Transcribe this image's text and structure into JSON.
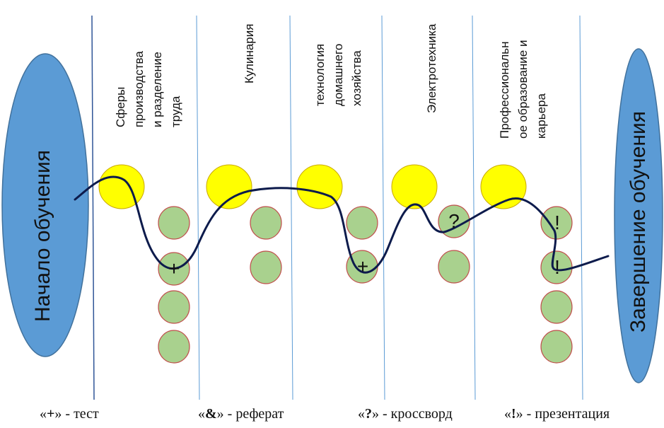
{
  "start_label": "Начало обучения",
  "end_label": "Завершение обучения",
  "columns": [
    {
      "label": "Сферы\nпроизводства\nи разделение\nтруда"
    },
    {
      "label": "Кулинария"
    },
    {
      "label": "технология\nдомашнего\nхозяйства"
    },
    {
      "label": "Электротехника"
    },
    {
      "label": "Профессиональн\nое образование и\nкарьера"
    }
  ],
  "marks": [
    "+",
    "+",
    "?",
    "!",
    "!"
  ],
  "legend": [
    {
      "symbol": "+",
      "text": "- тест"
    },
    {
      "symbol": "&",
      "text": "- реферат"
    },
    {
      "symbol": "?",
      "text": "- кроссворд"
    },
    {
      "symbol": "!",
      "text": "- презентация"
    }
  ],
  "colors": {
    "ellipse": "#5b9bd5",
    "yellow": "#ffff00",
    "green": "#a9d18e",
    "green_border": "#c0504d",
    "path": "#0d1b4c",
    "divider": "#4a7ab0"
  }
}
